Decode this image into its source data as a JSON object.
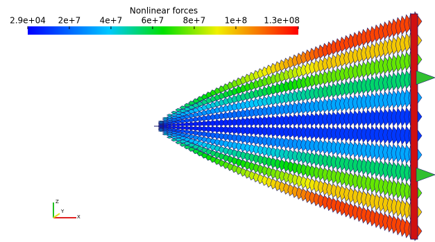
{
  "colorbar": {
    "title": "Nonlinear forces",
    "range": [
      29000,
      130000000
    ],
    "ticks": [
      {
        "value": 29000,
        "label": "2.9e+04"
      },
      {
        "value": 20000000,
        "label": "2e+7"
      },
      {
        "value": 40000000,
        "label": "4e+7"
      },
      {
        "value": 60000000,
        "label": "6e+7"
      },
      {
        "value": 80000000,
        "label": "8e+7"
      },
      {
        "value": 100000000,
        "label": "1e+8"
      },
      {
        "value": 130000000,
        "label": "1.3e+08"
      }
    ]
  },
  "axes": {
    "z": "Z",
    "y": "Y",
    "x": "X"
  }
}
